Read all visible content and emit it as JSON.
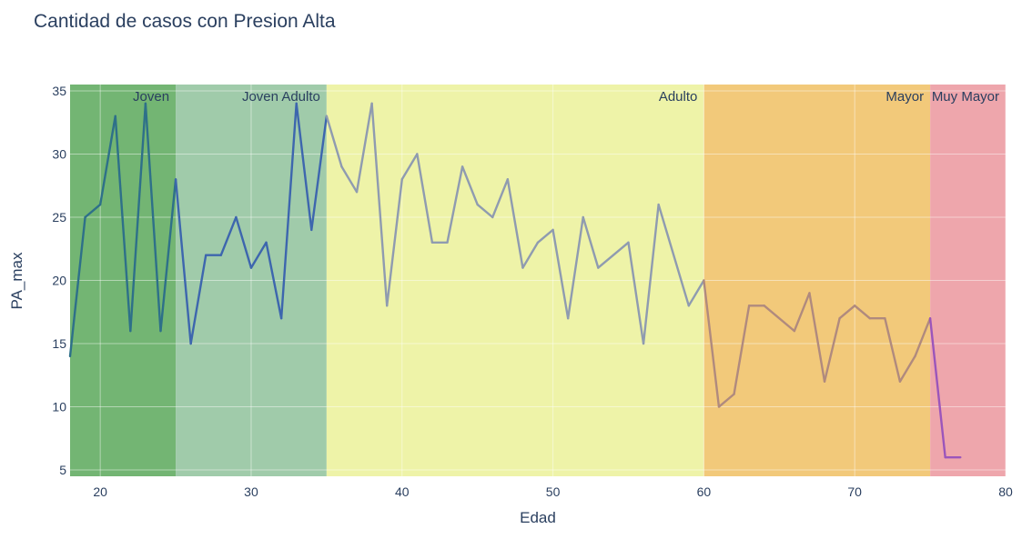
{
  "chart_data": {
    "type": "line",
    "title": "Cantidad de casos con Presion Alta",
    "xlabel": "Edad",
    "ylabel": "PA_max",
    "xlim": [
      18,
      80
    ],
    "ylim": [
      4.5,
      35.5
    ],
    "x_ticks": [
      20,
      30,
      40,
      50,
      60,
      70,
      80
    ],
    "y_ticks": [
      5,
      10,
      15,
      20,
      25,
      30,
      35
    ],
    "grid": true,
    "bands": [
      {
        "label": "Joven",
        "x0": 18,
        "x1": 25,
        "color": "#73b573"
      },
      {
        "label": "Joven Adulto",
        "x0": 25,
        "x1": 35,
        "color": "#a0cbaa"
      },
      {
        "label": "Adulto",
        "x0": 35,
        "x1": 60,
        "color": "#eef3a8"
      },
      {
        "label": "Mayor",
        "x0": 60,
        "x1": 75,
        "color": "#f2c97a"
      },
      {
        "label": "Muy Mayor",
        "x0": 75,
        "x1": 80,
        "color": "#eea6ac"
      }
    ],
    "series": [
      {
        "values_x": [
          18,
          19,
          20,
          21,
          22,
          23,
          24,
          25,
          26,
          27,
          28,
          29,
          30,
          31,
          32,
          33,
          34,
          35,
          36,
          37,
          38,
          39,
          40,
          41,
          42,
          43,
          44,
          45,
          46,
          47,
          48,
          49,
          50,
          51,
          52,
          53,
          55,
          56,
          57,
          59,
          60,
          61,
          62,
          63,
          64,
          66,
          67,
          68,
          69,
          70,
          71,
          72,
          73,
          74,
          75,
          76,
          77
        ],
        "values_y": [
          14,
          25,
          26,
          33,
          16,
          34,
          16,
          28,
          15,
          22,
          22,
          25,
          21,
          23,
          17,
          34,
          24,
          33,
          29,
          27,
          34,
          18,
          28,
          30,
          23,
          23,
          29,
          26,
          25,
          28,
          21,
          23,
          24,
          17,
          25,
          21,
          23,
          15,
          26,
          18,
          20,
          10,
          11,
          18,
          18,
          16,
          19,
          12,
          17,
          18,
          17,
          17,
          12,
          14,
          17,
          6,
          6
        ],
        "color": "#3b63b3"
      }
    ],
    "line_colors": {
      "joven": "#2e7089",
      "joven_adulto": "#3d66ae",
      "adulto": "#8f9bb0",
      "mayor": "#b08a7e",
      "muy_mayor": "#9b55bb"
    }
  }
}
